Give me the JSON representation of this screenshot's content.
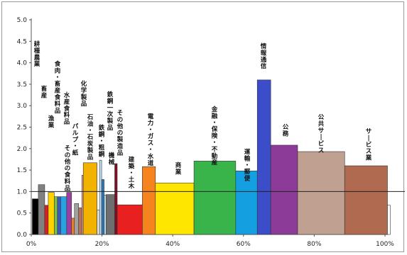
{
  "chart_data": {
    "type": "bar",
    "variant": "variable-width (marimekko-style) bars; x = cumulative share, y = ratio",
    "ylim": [
      0,
      5.0
    ],
    "xlim": [
      0,
      100
    ],
    "y_ticks": [
      "0.0",
      "0.5",
      "1.0",
      "1.5",
      "2.0",
      "2.5",
      "3.0",
      "3.5",
      "4.0",
      "4.5",
      "5.0"
    ],
    "x_ticks": [
      "0%",
      "20%",
      "40%",
      "60%",
      "80%",
      "100%"
    ],
    "reference_line": 1.0,
    "grid": false,
    "bars": [
      {
        "label": "耕種農業",
        "x0": 0.3,
        "x1": 2.0,
        "value": 0.83,
        "color": "#000000"
      },
      {
        "label": "畜産",
        "x0": 2.0,
        "x1": 3.8,
        "value": 1.16,
        "color": "#808080"
      },
      {
        "label": "",
        "x0": 3.8,
        "x1": 4.8,
        "value": 0.68,
        "color": "#d92020"
      },
      {
        "label": "漁業",
        "x0": 4.8,
        "x1": 6.5,
        "value": 0.98,
        "color": "#ffd200"
      },
      {
        "label": "食肉・畜産食料品",
        "x0": 6.5,
        "x1": 7.4,
        "value": 0.88,
        "color": "#7dc242"
      },
      {
        "label": "",
        "x0": 7.4,
        "x1": 8.3,
        "value": 0.88,
        "color": "#3a57c4"
      },
      {
        "label": "水産食料品",
        "x0": 8.3,
        "x1": 10.0,
        "value": 0.88,
        "color": "#2aa2e0"
      },
      {
        "label": "その他の食料品",
        "x0": 10.0,
        "x1": 11.4,
        "value": 0.98,
        "color": "#9b3fa0"
      },
      {
        "label": "",
        "x0": 11.4,
        "x1": 12.2,
        "value": 0.38,
        "color": "#f08020"
      },
      {
        "label": "パルプ・紙",
        "x0": 12.2,
        "x1": 13.4,
        "value": 0.72,
        "color": "#a0a0a0"
      },
      {
        "label": "",
        "x0": 13.4,
        "x1": 14.3,
        "value": 0.62,
        "color": "#bb7055"
      },
      {
        "label": "",
        "x0": 14.3,
        "x1": 14.7,
        "value": 1.38,
        "color": "#e8a39c"
      },
      {
        "label": "化学製品",
        "x0": 14.7,
        "x1": 18.6,
        "value": 1.67,
        "color": "#f2b300"
      },
      {
        "label": "",
        "x0": 18.6,
        "x1": 19.3,
        "value": 0.57,
        "color": "#e8e8e8"
      },
      {
        "label": "石油・石炭製品",
        "x0": 19.3,
        "x1": 19.9,
        "value": 1.73,
        "color": "#bde0f5"
      },
      {
        "label": "鉄鋼一次製品",
        "x0": 19.9,
        "x1": 20.6,
        "value": 1.28,
        "color": "#2f79b5"
      },
      {
        "label": "鉄鋼・粗鋼",
        "x0": 20.6,
        "x1": 21.2,
        "value": 0.92,
        "color": "#b6d8ec"
      },
      {
        "label": "機械",
        "x0": 21.2,
        "x1": 23.6,
        "value": 0.93,
        "color": "#6e6e6e"
      },
      {
        "label": "その他の製造品",
        "x0": 23.6,
        "x1": 24.3,
        "value": 1.65,
        "color": "#800d24"
      },
      {
        "label": "建築・土木",
        "x0": 24.3,
        "x1": 31.4,
        "value": 0.69,
        "color": "#e82020"
      },
      {
        "label": "電力・ガス・水道",
        "x0": 31.4,
        "x1": 35.1,
        "value": 1.58,
        "color": "#f5841f"
      },
      {
        "label": "商業",
        "x0": 35.1,
        "x1": 46.0,
        "value": 1.2,
        "color": "#ffe600"
      },
      {
        "label": "金融・保険・不動産",
        "x0": 46.0,
        "x1": 57.8,
        "value": 1.71,
        "color": "#38b44a"
      },
      {
        "label": "運輸・郵便",
        "x0": 57.8,
        "x1": 63.9,
        "value": 1.48,
        "color": "#14a0e0"
      },
      {
        "label": "情報通信",
        "x0": 63.9,
        "x1": 67.7,
        "value": 3.6,
        "color": "#3b4dc8"
      },
      {
        "label": "公務",
        "x0": 67.7,
        "x1": 75.3,
        "value": 2.08,
        "color": "#8c3b99"
      },
      {
        "label": "公共サービス",
        "x0": 75.3,
        "x1": 88.6,
        "value": 1.93,
        "color": "#c0a090"
      },
      {
        "label": "サービス業",
        "x0": 88.6,
        "x1": 100.7,
        "value": 1.6,
        "color": "#b06a50"
      },
      {
        "label": "",
        "x0": 100.7,
        "x1": 101.5,
        "value": 0.68,
        "color": "#ffffff"
      }
    ],
    "xlabel": "",
    "ylabel": ""
  }
}
